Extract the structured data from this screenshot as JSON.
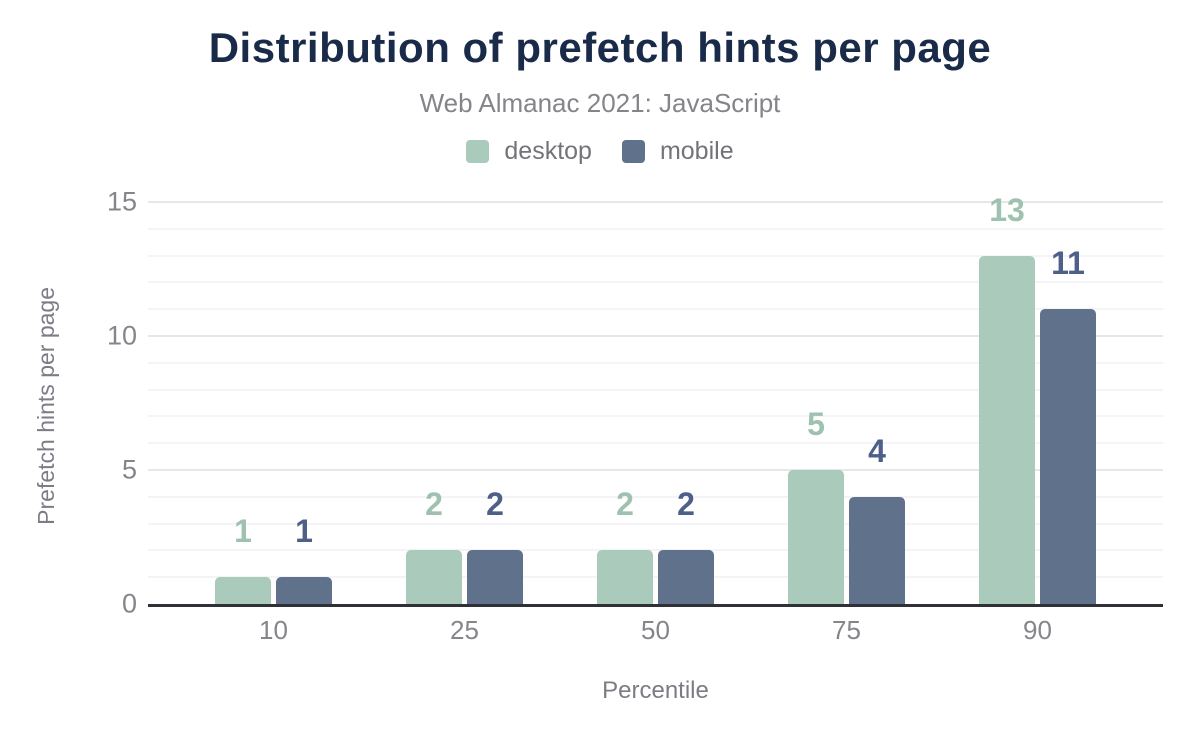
{
  "header": {
    "title": "Distribution of prefetch hints per page",
    "subtitle": "Web Almanac 2021: JavaScript"
  },
  "chart_data": {
    "type": "bar",
    "title": "Distribution of prefetch hints per page",
    "subtitle": "Web Almanac 2021: JavaScript",
    "categories": [
      "10",
      "25",
      "50",
      "75",
      "90"
    ],
    "series": [
      {
        "name": "desktop",
        "values": [
          1,
          2,
          2,
          5,
          13
        ],
        "color": "#aacabb",
        "label_color": "#9ec2af"
      },
      {
        "name": "mobile",
        "values": [
          1,
          2,
          2,
          4,
          11
        ],
        "color": "#60718c",
        "label_color": "#4e6088"
      }
    ],
    "xlabel": "Percentile",
    "ylabel": "Prefetch hints per page",
    "ylim": [
      0,
      15
    ],
    "yticks": [
      0,
      5,
      10,
      15
    ],
    "minor_grid_step": 1,
    "major_grid_step": 5,
    "grid": "on",
    "legend_position": "top",
    "data_labels": true
  },
  "colors": {
    "title_text": "#1a2b49",
    "muted_text": "#85868c",
    "axis_line": "#303136",
    "grid_major": "#e7e7ea",
    "grid_minor": "#f4f4f6",
    "background": "#ffffff"
  }
}
